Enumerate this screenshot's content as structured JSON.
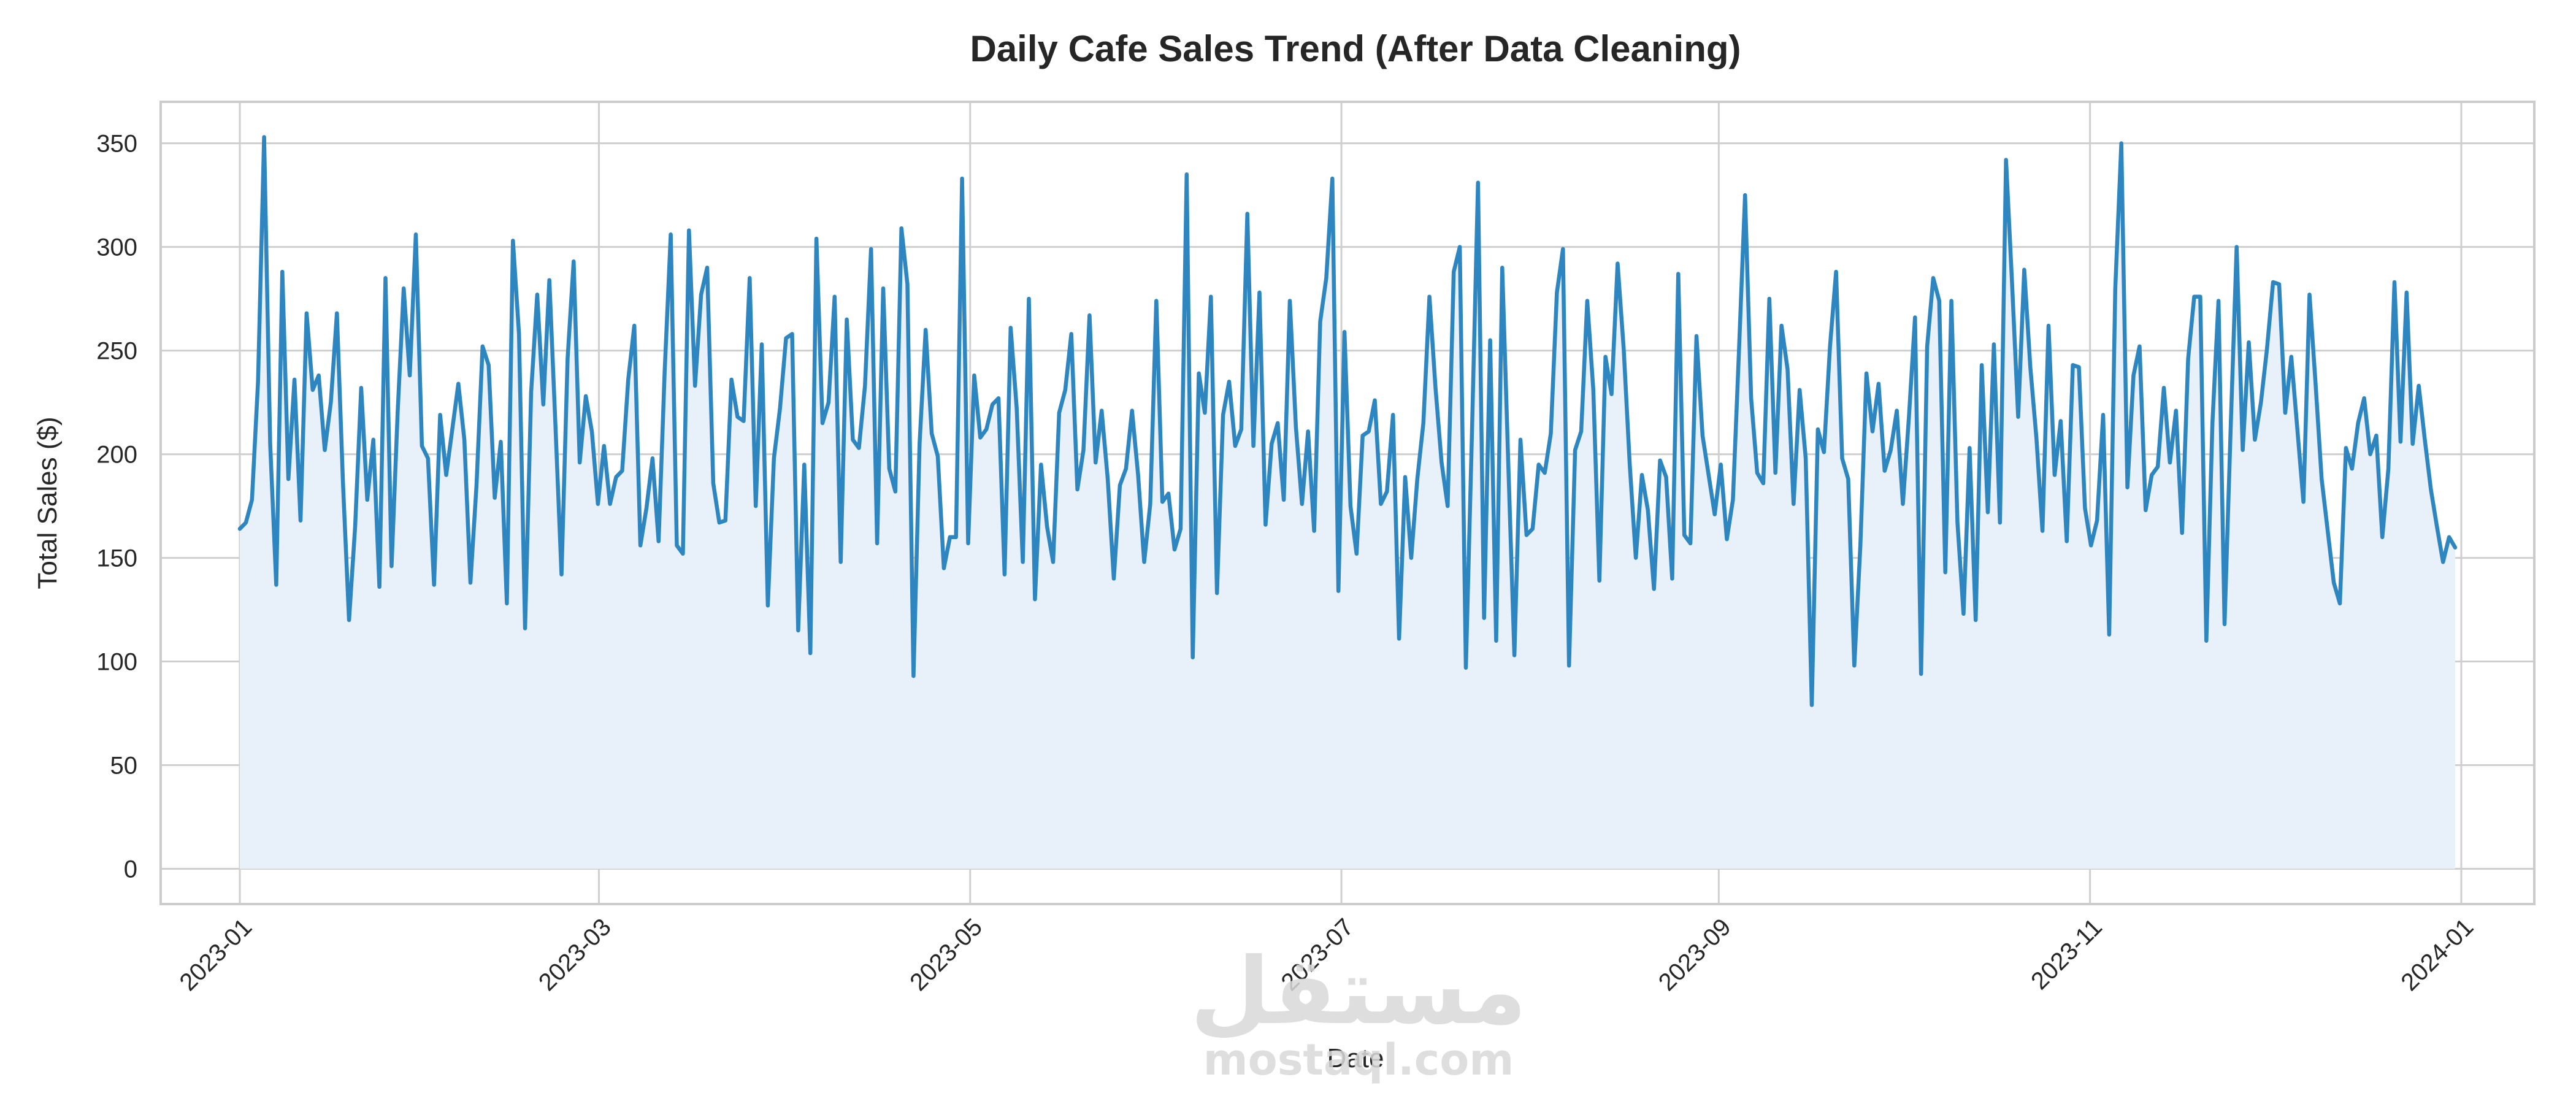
{
  "chart_data": {
    "type": "area",
    "title": "Daily Cafe Sales Trend (After Data Cleaning)",
    "xlabel": "Date",
    "ylabel": "Total Sales ($)",
    "x_range": [
      "2022-12-19",
      "2024-01-13"
    ],
    "ylim": [
      -17,
      370
    ],
    "yticks": [
      0,
      50,
      100,
      150,
      200,
      250,
      300,
      350
    ],
    "xticks": [
      "2023-01",
      "2023-03",
      "2023-05",
      "2023-07",
      "2023-09",
      "2023-11",
      "2024-01"
    ],
    "grid": true,
    "line_color": "#2e86c1",
    "fill_color": "#e8f1f9",
    "series": [
      {
        "x_start": "2023-01-01",
        "x_end": "2023-12-31",
        "values": [
          164,
          167,
          178,
          235,
          353,
          205,
          137,
          288,
          188,
          236,
          168,
          268,
          231,
          238,
          202,
          225,
          268,
          186,
          120,
          165,
          232,
          178,
          207,
          136,
          285,
          146,
          220,
          280,
          238,
          306,
          204,
          198,
          137,
          219,
          190,
          212,
          234,
          207,
          138,
          185,
          252,
          243,
          179,
          206,
          128,
          303,
          258,
          116,
          230,
          277,
          224,
          284,
          214,
          142,
          246,
          293,
          196,
          228,
          211,
          176,
          204,
          176,
          189,
          192,
          236,
          262,
          156,
          174,
          198,
          158,
          240,
          306,
          156,
          152,
          308,
          233,
          277,
          290,
          186,
          167,
          168,
          236,
          218,
          216,
          285,
          175,
          253,
          127,
          198,
          222,
          256,
          258,
          115,
          195,
          104,
          304,
          215,
          225,
          276,
          148,
          265,
          207,
          203,
          233,
          299,
          157,
          280,
          193,
          182,
          309,
          282,
          93,
          205,
          260,
          210,
          199,
          145,
          160,
          160,
          333,
          157,
          238,
          208,
          212,
          224,
          227,
          142,
          261,
          222,
          148,
          275,
          130,
          195,
          165,
          148,
          220,
          231,
          258,
          183,
          202,
          267,
          196,
          221,
          188,
          140,
          185,
          193,
          221,
          190,
          148,
          176,
          274,
          177,
          181,
          154,
          164,
          335,
          102,
          239,
          220,
          276,
          133,
          219,
          235,
          204,
          212,
          316,
          204,
          278,
          166,
          205,
          215,
          178,
          274,
          213,
          176,
          211,
          163,
          264,
          285,
          333,
          134,
          259,
          175,
          152,
          209,
          211,
          226,
          176,
          182,
          219,
          111,
          189,
          150,
          188,
          215,
          276,
          232,
          196,
          175,
          288,
          300,
          97,
          210,
          331,
          121,
          255,
          110,
          290,
          195,
          103,
          207,
          161,
          164,
          195,
          191,
          210,
          278,
          299,
          98,
          202,
          211,
          274,
          231,
          139,
          247,
          229,
          292,
          251,
          195,
          150,
          190,
          173,
          135,
          197,
          189,
          140,
          287,
          161,
          157,
          257,
          209,
          190,
          171,
          195,
          159,
          178,
          250,
          325,
          227,
          191,
          186,
          275,
          191,
          262,
          241,
          176,
          231,
          198,
          79,
          212,
          201,
          252,
          288,
          198,
          188,
          98,
          156,
          239,
          211,
          234,
          192,
          202,
          221,
          176,
          218,
          266,
          94,
          252,
          285,
          274,
          143,
          274,
          167,
          123,
          203,
          120,
          243,
          172,
          253,
          167,
          342,
          282,
          218,
          289,
          242,
          208,
          163,
          262,
          190,
          216,
          158,
          243,
          242,
          174,
          156,
          168,
          219,
          113,
          280,
          350,
          184,
          238,
          252,
          173,
          190,
          194,
          232,
          196,
          221,
          162,
          246,
          276,
          276,
          110,
          215,
          274,
          118,
          212,
          300,
          202,
          254,
          207,
          225,
          251,
          283,
          282,
          220,
          247,
          212,
          177,
          277,
          234,
          188,
          163,
          138,
          128,
          203,
          193,
          215,
          227,
          200,
          209,
          160,
          193,
          283,
          206,
          278,
          205,
          233,
          207,
          183,
          165,
          148,
          160,
          155
        ]
      }
    ]
  },
  "watermark": {
    "arabic": "مستقل",
    "latin": "mostaql.com"
  }
}
